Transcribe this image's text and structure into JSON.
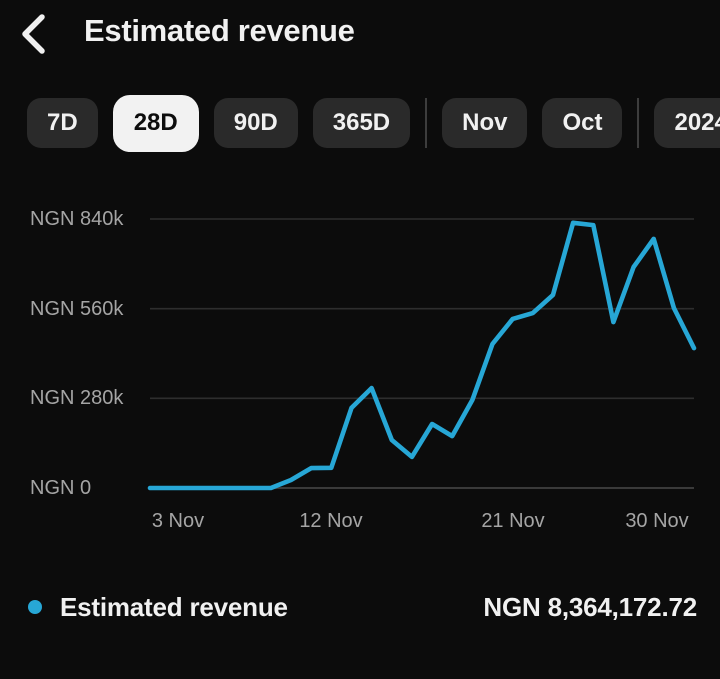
{
  "header": {
    "title": "Estimated revenue",
    "back_icon": "chevron-left"
  },
  "filters": {
    "groups": [
      {
        "chips": [
          {
            "label": "7D",
            "selected": false
          },
          {
            "label": "28D",
            "selected": true
          },
          {
            "label": "90D",
            "selected": false
          },
          {
            "label": "365D",
            "selected": false
          }
        ]
      },
      {
        "chips": [
          {
            "label": "Nov",
            "selected": false
          },
          {
            "label": "Oct",
            "selected": false
          }
        ]
      },
      {
        "chips": [
          {
            "label": "2024",
            "selected": false
          }
        ]
      }
    ]
  },
  "chart_data": {
    "type": "line",
    "title": "Estimated revenue",
    "unit": "NGN",
    "x": [
      "3 Nov",
      "4 Nov",
      "5 Nov",
      "6 Nov",
      "7 Nov",
      "8 Nov",
      "9 Nov",
      "10 Nov",
      "11 Nov",
      "12 Nov",
      "13 Nov",
      "14 Nov",
      "15 Nov",
      "16 Nov",
      "17 Nov",
      "18 Nov",
      "19 Nov",
      "20 Nov",
      "21 Nov",
      "22 Nov",
      "23 Nov",
      "24 Nov",
      "25 Nov",
      "26 Nov",
      "27 Nov",
      "28 Nov",
      "29 Nov",
      "30 Nov"
    ],
    "values": [
      0,
      0,
      0,
      0,
      0,
      0,
      0,
      25000,
      62000,
      63000,
      250000,
      312000,
      150000,
      97000,
      200000,
      162000,
      275000,
      450000,
      528000,
      546000,
      603000,
      828000,
      821000,
      518000,
      690000,
      778000,
      562000,
      437000
    ],
    "ylim": [
      0,
      840000
    ],
    "y_ticks": [
      {
        "value": 0,
        "label": "NGN 0"
      },
      {
        "value": 280000,
        "label": "NGN 280k"
      },
      {
        "value": 560000,
        "label": "NGN 560k"
      },
      {
        "value": 840000,
        "label": "NGN 840k"
      }
    ],
    "x_ticks": [
      {
        "index": 0,
        "label": "3 Nov"
      },
      {
        "index": 9,
        "label": "12 Nov"
      },
      {
        "index": 18,
        "label": "21 Nov"
      },
      {
        "index": 27,
        "label": "30 Nov"
      }
    ],
    "grid": true,
    "legend_position": "bottom",
    "line_color": "#27a7d6"
  },
  "legend": {
    "label": "Estimated revenue",
    "value": "NGN 8,364,172.72",
    "marker_color": "#27a7d6"
  },
  "colors": {
    "background": "#0c0c0c",
    "chip_bg": "#2a2a2a",
    "chip_selected_bg": "#f2f2f2",
    "text_primary": "#f1f1f1",
    "text_secondary": "#a5a5a5",
    "gridline": "#2e2e2e",
    "accent": "#27a7d6"
  }
}
